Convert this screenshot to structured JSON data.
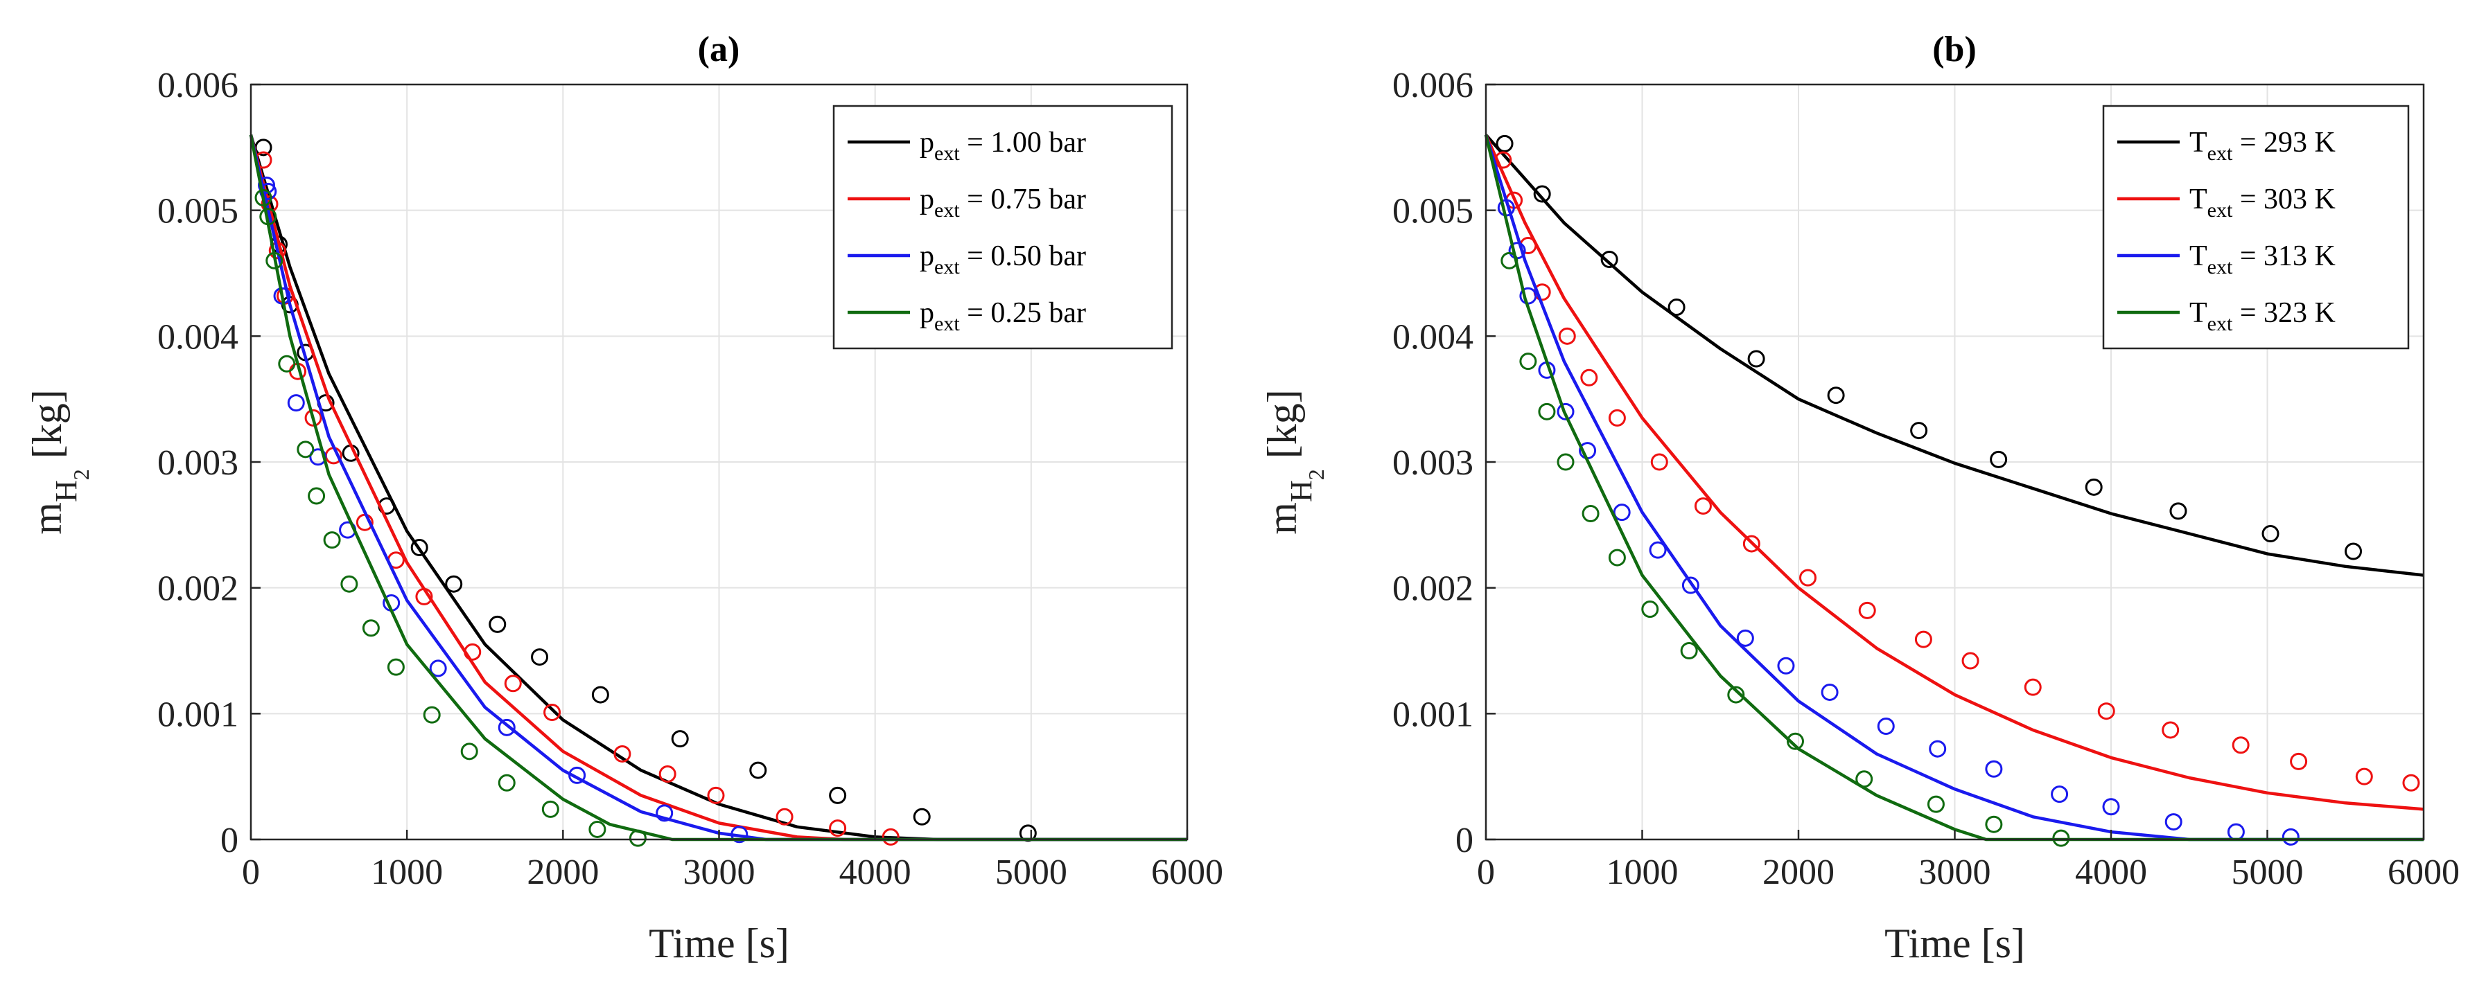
{
  "chart_data": [
    {
      "type": "line",
      "title": "(a)",
      "xlabel": "Time [s]",
      "ylabel": {
        "base": "m",
        "sub1": "H",
        "sub2": "2",
        "unit": " [kg]"
      },
      "xlim": [
        0,
        6000
      ],
      "ylim": [
        0,
        0.006
      ],
      "xticks": [
        0,
        1000,
        2000,
        3000,
        4000,
        5000,
        6000
      ],
      "xtick_labels": [
        "0",
        "1000",
        "2000",
        "3000",
        "4000",
        "5000",
        "6000"
      ],
      "yticks": [
        0,
        0.001,
        0.002,
        0.003,
        0.004,
        0.005,
        0.006
      ],
      "ytick_labels": [
        "0",
        "0.001",
        "0.002",
        "0.003",
        "0.004",
        "0.005",
        "0.006"
      ],
      "grid": true,
      "legend_position": "top-right",
      "series": [
        {
          "var": "p",
          "sub": "ext",
          "rest": " = 1.00 bar",
          "color": "#000000",
          "curve": [
            [
              0,
              0.0056
            ],
            [
              250,
              0.00455
            ],
            [
              500,
              0.0037
            ],
            [
              1000,
              0.00245
            ],
            [
              1500,
              0.00155
            ],
            [
              2000,
              0.00095
            ],
            [
              2500,
              0.00055
            ],
            [
              3000,
              0.00028
            ],
            [
              3500,
              0.0001
            ],
            [
              4000,
              2e-05
            ],
            [
              4400,
              0
            ],
            [
              6000,
              0
            ]
          ],
          "markers": [
            [
              80,
              0.0055
            ],
            [
              180,
              0.00473
            ],
            [
              250,
              0.00425
            ],
            [
              350,
              0.00387
            ],
            [
              480,
              0.00347
            ],
            [
              640,
              0.00307
            ],
            [
              870,
              0.00265
            ],
            [
              1080,
              0.00232
            ],
            [
              1300,
              0.00203
            ],
            [
              1580,
              0.00171
            ],
            [
              1850,
              0.00145
            ],
            [
              2240,
              0.00115
            ],
            [
              2750,
              0.0008
            ],
            [
              3250,
              0.00055
            ],
            [
              3760,
              0.00035
            ],
            [
              4300,
              0.00018
            ],
            [
              4980,
              5e-05
            ]
          ]
        },
        {
          "var": "p",
          "sub": "ext",
          "rest": " = 0.75 bar",
          "color": "#ee1111",
          "curve": [
            [
              0,
              0.0056
            ],
            [
              250,
              0.0044
            ],
            [
              500,
              0.0035
            ],
            [
              1000,
              0.0022
            ],
            [
              1500,
              0.00125
            ],
            [
              2000,
              0.0007
            ],
            [
              2500,
              0.00035
            ],
            [
              3000,
              0.00013
            ],
            [
              3500,
              2e-05
            ],
            [
              3800,
              0
            ],
            [
              6000,
              0
            ]
          ],
          "markers": [
            [
              80,
              0.0054
            ],
            [
              120,
              0.00505
            ],
            [
              170,
              0.00468
            ],
            [
              220,
              0.00432
            ],
            [
              300,
              0.00372
            ],
            [
              400,
              0.00335
            ],
            [
              530,
              0.00305
            ],
            [
              730,
              0.00252
            ],
            [
              930,
              0.00222
            ],
            [
              1110,
              0.00193
            ],
            [
              1420,
              0.00149
            ],
            [
              1680,
              0.00124
            ],
            [
              1930,
              0.00101
            ],
            [
              2380,
              0.00068
            ],
            [
              2670,
              0.00052
            ],
            [
              2980,
              0.00035
            ],
            [
              3420,
              0.00018
            ],
            [
              3760,
              9e-05
            ],
            [
              4100,
              2e-05
            ]
          ]
        },
        {
          "var": "p",
          "sub": "ext",
          "rest": " = 0.50 bar",
          "color": "#1a1aee",
          "curve": [
            [
              0,
              0.0056
            ],
            [
              250,
              0.00425
            ],
            [
              500,
              0.0032
            ],
            [
              1000,
              0.0019
            ],
            [
              1500,
              0.00105
            ],
            [
              2000,
              0.00055
            ],
            [
              2500,
              0.00022
            ],
            [
              3000,
              5e-05
            ],
            [
              3300,
              0
            ],
            [
              6000,
              0
            ]
          ],
          "markers": [
            [
              100,
              0.0052
            ],
            [
              110,
              0.00515
            ],
            [
              200,
              0.00432
            ],
            [
              290,
              0.00347
            ],
            [
              430,
              0.00304
            ],
            [
              620,
              0.00246
            ],
            [
              900,
              0.00188
            ],
            [
              1200,
              0.00136
            ],
            [
              1640,
              0.00089
            ],
            [
              2090,
              0.00051
            ],
            [
              2650,
              0.00021
            ],
            [
              3130,
              4e-05
            ]
          ]
        },
        {
          "var": "p",
          "sub": "ext",
          "rest": " = 0.25 bar",
          "color": "#106b10",
          "curve": [
            [
              0,
              0.0056
            ],
            [
              250,
              0.004
            ],
            [
              500,
              0.0029
            ],
            [
              1000,
              0.00155
            ],
            [
              1500,
              0.0008
            ],
            [
              2000,
              0.00032
            ],
            [
              2300,
              0.00012
            ],
            [
              2700,
              0
            ],
            [
              6000,
              0
            ]
          ],
          "markers": [
            [
              80,
              0.0051
            ],
            [
              110,
              0.00495
            ],
            [
              150,
              0.0046
            ],
            [
              230,
              0.00378
            ],
            [
              350,
              0.0031
            ],
            [
              420,
              0.00273
            ],
            [
              520,
              0.00238
            ],
            [
              630,
              0.00203
            ],
            [
              770,
              0.00168
            ],
            [
              930,
              0.00137
            ],
            [
              1160,
              0.00099
            ],
            [
              1400,
              0.0007
            ],
            [
              1640,
              0.00045
            ],
            [
              1920,
              0.00024
            ],
            [
              2220,
              8e-05
            ],
            [
              2480,
              1e-05
            ]
          ]
        }
      ]
    },
    {
      "type": "line",
      "title": "(b)",
      "xlabel": "Time [s]",
      "ylabel": {
        "base": "m",
        "sub1": "H",
        "sub2": "2",
        "unit": " [kg]"
      },
      "xlim": [
        0,
        6000
      ],
      "ylim": [
        0,
        0.006
      ],
      "xticks": [
        0,
        1000,
        2000,
        3000,
        4000,
        5000,
        6000
      ],
      "xtick_labels": [
        "0",
        "1000",
        "2000",
        "3000",
        "4000",
        "5000",
        "6000"
      ],
      "yticks": [
        0,
        0.001,
        0.002,
        0.003,
        0.004,
        0.005,
        0.006
      ],
      "ytick_labels": [
        "0",
        "0.001",
        "0.002",
        "0.003",
        "0.004",
        "0.005",
        "0.006"
      ],
      "grid": true,
      "legend_position": "top-right",
      "series": [
        {
          "var": "T",
          "sub": "ext",
          "rest": " = 293 K",
          "color": "#000000",
          "curve": [
            [
              0,
              0.0056
            ],
            [
              500,
              0.0049
            ],
            [
              1000,
              0.00435
            ],
            [
              1500,
              0.0039
            ],
            [
              2000,
              0.0035
            ],
            [
              2500,
              0.00323
            ],
            [
              3000,
              0.00299
            ],
            [
              3500,
              0.00279
            ],
            [
              4000,
              0.00259
            ],
            [
              4500,
              0.00243
            ],
            [
              5000,
              0.00227
            ],
            [
              5500,
              0.00217
            ],
            [
              6000,
              0.0021
            ]
          ],
          "markers": [
            [
              120,
              0.00553
            ],
            [
              360,
              0.00513
            ],
            [
              790,
              0.00461
            ],
            [
              1220,
              0.00423
            ],
            [
              1730,
              0.00382
            ],
            [
              2240,
              0.00353
            ],
            [
              2770,
              0.00325
            ],
            [
              3280,
              0.00302
            ],
            [
              3890,
              0.0028
            ],
            [
              4430,
              0.00261
            ],
            [
              5020,
              0.00243
            ],
            [
              5550,
              0.00229
            ]
          ]
        },
        {
          "var": "T",
          "sub": "ext",
          "rest": " = 303 K",
          "color": "#ee1111",
          "curve": [
            [
              0,
              0.0056
            ],
            [
              250,
              0.0049
            ],
            [
              500,
              0.0043
            ],
            [
              1000,
              0.00335
            ],
            [
              1500,
              0.0026
            ],
            [
              2000,
              0.002
            ],
            [
              2500,
              0.00152
            ],
            [
              3000,
              0.00115
            ],
            [
              3500,
              0.00087
            ],
            [
              4000,
              0.00065
            ],
            [
              4500,
              0.00049
            ],
            [
              5000,
              0.00037
            ],
            [
              5500,
              0.00029
            ],
            [
              6000,
              0.00024
            ]
          ],
          "markers": [
            [
              110,
              0.0054
            ],
            [
              180,
              0.00508
            ],
            [
              270,
              0.00472
            ],
            [
              360,
              0.00435
            ],
            [
              520,
              0.004
            ],
            [
              660,
              0.00367
            ],
            [
              840,
              0.00335
            ],
            [
              1110,
              0.003
            ],
            [
              1390,
              0.00265
            ],
            [
              1700,
              0.00235
            ],
            [
              2060,
              0.00208
            ],
            [
              2440,
              0.00182
            ],
            [
              2800,
              0.00159
            ],
            [
              3100,
              0.00142
            ],
            [
              3500,
              0.00121
            ],
            [
              3970,
              0.00102
            ],
            [
              4380,
              0.00087
            ],
            [
              4830,
              0.00075
            ],
            [
              5200,
              0.00062
            ],
            [
              5620,
              0.0005
            ],
            [
              5920,
              0.00045
            ]
          ]
        },
        {
          "var": "T",
          "sub": "ext",
          "rest": " = 313 K",
          "color": "#1a1aee",
          "curve": [
            [
              0,
              0.0056
            ],
            [
              250,
              0.0046
            ],
            [
              500,
              0.0038
            ],
            [
              1000,
              0.0026
            ],
            [
              1500,
              0.0017
            ],
            [
              2000,
              0.0011
            ],
            [
              2500,
              0.00068
            ],
            [
              3000,
              0.0004
            ],
            [
              3500,
              0.00018
            ],
            [
              4000,
              6e-05
            ],
            [
              4500,
              0
            ],
            [
              6000,
              0
            ]
          ],
          "markers": [
            [
              130,
              0.00502
            ],
            [
              200,
              0.00468
            ],
            [
              270,
              0.00432
            ],
            [
              390,
              0.00373
            ],
            [
              510,
              0.0034
            ],
            [
              650,
              0.00309
            ],
            [
              870,
              0.0026
            ],
            [
              1100,
              0.0023
            ],
            [
              1310,
              0.00202
            ],
            [
              1660,
              0.0016
            ],
            [
              1920,
              0.00138
            ],
            [
              2200,
              0.00117
            ],
            [
              2560,
              0.0009
            ],
            [
              2890,
              0.00072
            ],
            [
              3250,
              0.00056
            ],
            [
              3670,
              0.00036
            ],
            [
              4000,
              0.00026
            ],
            [
              4400,
              0.00014
            ],
            [
              4800,
              6e-05
            ],
            [
              5150,
              2e-05
            ]
          ]
        },
        {
          "var": "T",
          "sub": "ext",
          "rest": " = 323 K",
          "color": "#106b10",
          "curve": [
            [
              0,
              0.0056
            ],
            [
              250,
              0.0043
            ],
            [
              500,
              0.0034
            ],
            [
              1000,
              0.0021
            ],
            [
              1500,
              0.0013
            ],
            [
              2000,
              0.00072
            ],
            [
              2500,
              0.00035
            ],
            [
              3000,
              8e-05
            ],
            [
              3200,
              0
            ],
            [
              6000,
              0
            ]
          ],
          "markers": [
            [
              150,
              0.0046
            ],
            [
              270,
              0.0038
            ],
            [
              390,
              0.0034
            ],
            [
              510,
              0.003
            ],
            [
              670,
              0.00259
            ],
            [
              840,
              0.00224
            ],
            [
              1050,
              0.00183
            ],
            [
              1300,
              0.0015
            ],
            [
              1600,
              0.00115
            ],
            [
              1980,
              0.00078
            ],
            [
              2420,
              0.00048
            ],
            [
              2880,
              0.00028
            ],
            [
              3250,
              0.00012
            ],
            [
              3680,
              1e-05
            ]
          ]
        }
      ]
    }
  ]
}
